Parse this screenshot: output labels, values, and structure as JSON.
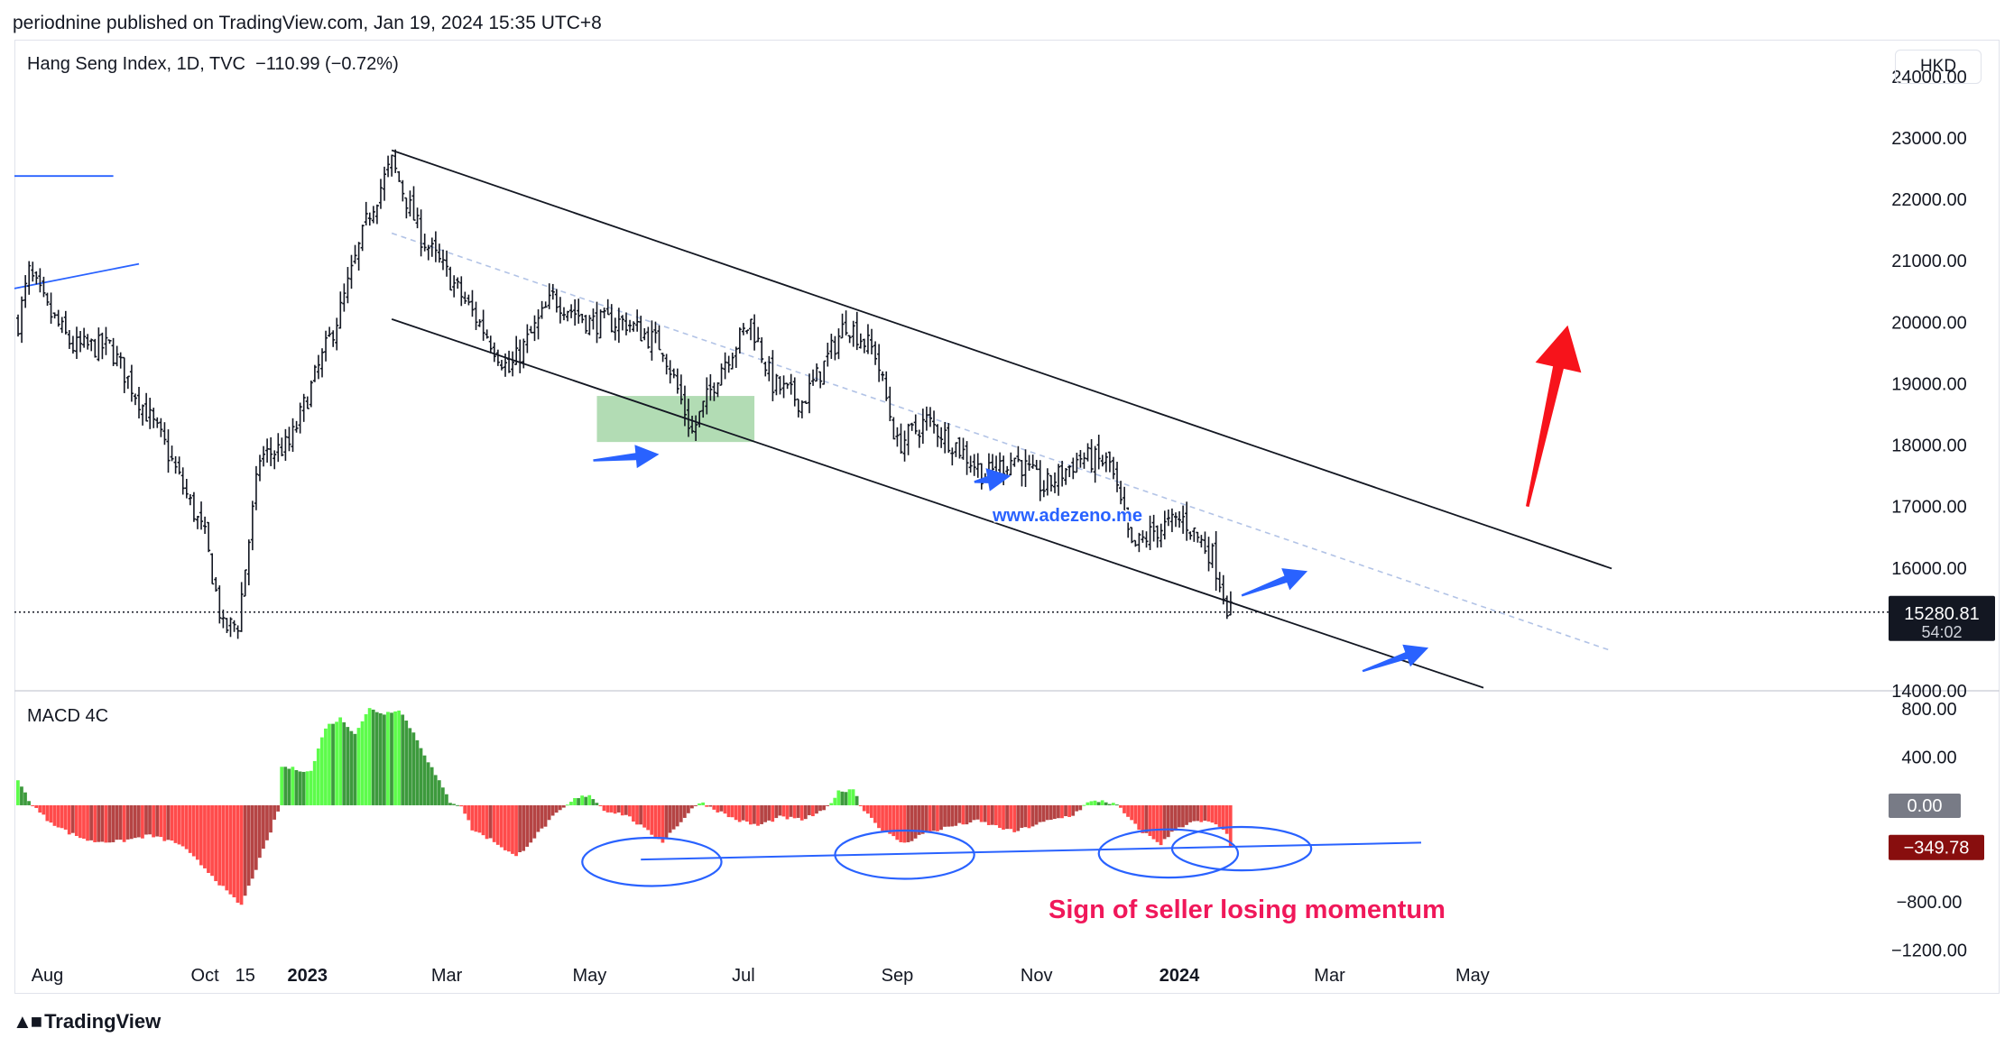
{
  "header": {
    "publisher": "periodnine published on TradingView.com, Jan 19, 2024 15:35 UTC+8",
    "legend": "Hang Seng Index, 1D, TVC  −110.99 (−0.72%)",
    "currency": "HKD",
    "macd_label": "MACD 4C"
  },
  "footer": {
    "brand": "TradingView"
  },
  "annotations": {
    "watermark": "www.adezeno.me",
    "caption": "Sign of seller losing momentum"
  },
  "colors": {
    "candle": "#131722",
    "channel": "#131722",
    "midline": "#b2c3e6",
    "arrow_blue": "#2962ff",
    "arrow_red": "#f7131b",
    "zone": "#a5d6a7",
    "macd_bright_green": "#5dfc4b",
    "macd_dark_green": "#3d9a3d",
    "macd_bright_red": "#ff4b4b",
    "macd_dark_red": "#b54444",
    "caption": "#f0185a"
  },
  "chart_data": [
    {
      "type": "candlestick",
      "title": "Hang Seng Index, 1D, TVC",
      "ylim": [
        14000,
        24600
      ],
      "y_ticks": [
        "24000.00",
        "23000.00",
        "22000.00",
        "21000.00",
        "20000.00",
        "19000.00",
        "18000.00",
        "17000.00",
        "16000.00",
        "14000.00"
      ],
      "y_tick_values": [
        24000,
        23000,
        22000,
        21000,
        20000,
        19000,
        18000,
        17000,
        16000,
        14000
      ],
      "last_price": "15280.81",
      "countdown": "54:02",
      "last_value": 15280.81,
      "x_ticks": [
        {
          "label": "Aug",
          "bold": false,
          "index": 8
        },
        {
          "label": "Oct",
          "bold": false,
          "index": 51
        },
        {
          "label": "15",
          "bold": false,
          "index": 62
        },
        {
          "label": "2023",
          "bold": true,
          "index": 79
        },
        {
          "label": "Mar",
          "bold": false,
          "index": 117
        },
        {
          "label": "May",
          "bold": false,
          "index": 156
        },
        {
          "label": "Jul",
          "bold": false,
          "index": 198
        },
        {
          "label": "Sep",
          "bold": false,
          "index": 240
        },
        {
          "label": "Nov",
          "bold": false,
          "index": 278
        },
        {
          "label": "2024",
          "bold": true,
          "index": 317
        },
        {
          "label": "Mar",
          "bold": false,
          "index": 358
        },
        {
          "label": "May",
          "bold": false,
          "index": 397
        }
      ],
      "keypoints": [
        [
          0,
          20000
        ],
        [
          3,
          20800
        ],
        [
          8,
          20200
        ],
        [
          15,
          19600
        ],
        [
          25,
          19600
        ],
        [
          40,
          18000
        ],
        [
          51,
          16500
        ],
        [
          56,
          15000
        ],
        [
          60,
          15100
        ],
        [
          66,
          17800
        ],
        [
          74,
          18000
        ],
        [
          81,
          19100
        ],
        [
          88,
          20200
        ],
        [
          96,
          21800
        ],
        [
          102,
          22600
        ],
        [
          110,
          21400
        ],
        [
          118,
          20700
        ],
        [
          128,
          19800
        ],
        [
          134,
          19200
        ],
        [
          146,
          20400
        ],
        [
          156,
          20000
        ],
        [
          166,
          20000
        ],
        [
          176,
          19600
        ],
        [
          184,
          18200
        ],
        [
          192,
          19300
        ],
        [
          200,
          20000
        ],
        [
          206,
          19000
        ],
        [
          214,
          18700
        ],
        [
          220,
          19300
        ],
        [
          226,
          20000
        ],
        [
          234,
          19500
        ],
        [
          240,
          18000
        ],
        [
          248,
          18400
        ],
        [
          256,
          18000
        ],
        [
          264,
          17500
        ],
        [
          272,
          17800
        ],
        [
          280,
          17300
        ],
        [
          290,
          17800
        ],
        [
          298,
          17700
        ],
        [
          304,
          16300
        ],
        [
          310,
          16600
        ],
        [
          318,
          16800
        ],
        [
          326,
          16200
        ],
        [
          330,
          15400
        ],
        [
          331,
          15280
        ]
      ],
      "channel_upper": [
        [
          102,
          22800
        ],
        [
          435,
          15990
        ]
      ],
      "channel_lower": [
        [
          102,
          20050
        ],
        [
          400,
          14050
        ]
      ],
      "midline": [
        [
          102,
          21450
        ],
        [
          435,
          14650
        ]
      ],
      "range_zone": {
        "x": [
          158,
          201
        ],
        "y": [
          18050,
          18800
        ]
      },
      "early_lines": [
        {
          "points": [
            [
              -1,
              20550
            ],
            [
              33,
              20950
            ]
          ]
        },
        {
          "points": [
            [
              -1,
              22380
            ],
            [
              26,
              22380
            ]
          ]
        }
      ],
      "arrows": [
        {
          "color": "blue",
          "from": [
            157,
            17750
          ],
          "to": [
            175,
            17850
          ]
        },
        {
          "color": "blue",
          "from": [
            261,
            17400
          ],
          "to": [
            271,
            17500
          ]
        },
        {
          "color": "blue",
          "from": [
            334,
            15550
          ],
          "to": [
            352,
            15950
          ]
        },
        {
          "color": "blue",
          "from": [
            367,
            14320
          ],
          "to": [
            385,
            14700
          ]
        },
        {
          "color": "red",
          "from": [
            412,
            17000
          ],
          "to": [
            423,
            19950
          ]
        }
      ]
    },
    {
      "type": "bar",
      "title": "MACD 4C",
      "ylim": [
        -1250,
        950
      ],
      "y_ticks": [
        "800.00",
        "400.00",
        "−800.00",
        "−1200.00"
      ],
      "y_tick_values": [
        800,
        400,
        -800,
        -1200
      ],
      "zero_label": "0.00",
      "last_label": "−349.78",
      "last_value": -349.78,
      "keypoints": [
        [
          0,
          200
        ],
        [
          4,
          0
        ],
        [
          8,
          -120
        ],
        [
          14,
          -230
        ],
        [
          20,
          -300
        ],
        [
          28,
          -300
        ],
        [
          36,
          -250
        ],
        [
          44,
          -320
        ],
        [
          52,
          -550
        ],
        [
          58,
          -750
        ],
        [
          61,
          -830
        ],
        [
          64,
          -600
        ],
        [
          68,
          -300
        ],
        [
          71,
          -50
        ],
        [
          72,
          320
        ],
        [
          76,
          300
        ],
        [
          80,
          280
        ],
        [
          84,
          650
        ],
        [
          88,
          720
        ],
        [
          92,
          600
        ],
        [
          96,
          800
        ],
        [
          100,
          760
        ],
        [
          104,
          800
        ],
        [
          108,
          600
        ],
        [
          114,
          250
        ],
        [
          118,
          30
        ],
        [
          121,
          0
        ],
        [
          124,
          -200
        ],
        [
          130,
          -300
        ],
        [
          136,
          -430
        ],
        [
          140,
          -300
        ],
        [
          146,
          -100
        ],
        [
          152,
          50
        ],
        [
          156,
          90
        ],
        [
          160,
          -40
        ],
        [
          166,
          -80
        ],
        [
          172,
          -220
        ],
        [
          176,
          -300
        ],
        [
          182,
          -100
        ],
        [
          186,
          30
        ],
        [
          190,
          -30
        ],
        [
          196,
          -120
        ],
        [
          202,
          -170
        ],
        [
          208,
          -100
        ],
        [
          214,
          -120
        ],
        [
          220,
          -50
        ],
        [
          224,
          110
        ],
        [
          228,
          140
        ],
        [
          230,
          0
        ],
        [
          236,
          -210
        ],
        [
          242,
          -320
        ],
        [
          246,
          -250
        ],
        [
          254,
          -180
        ],
        [
          262,
          -130
        ],
        [
          272,
          -220
        ],
        [
          280,
          -140
        ],
        [
          288,
          -80
        ],
        [
          292,
          20
        ],
        [
          296,
          40
        ],
        [
          300,
          0
        ],
        [
          306,
          -200
        ],
        [
          312,
          -320
        ],
        [
          316,
          -200
        ],
        [
          320,
          -140
        ],
        [
          326,
          -140
        ],
        [
          330,
          -240
        ],
        [
          331,
          -350
        ]
      ],
      "trendline": [
        [
          170,
          -450
        ],
        [
          383,
          -310
        ]
      ],
      "circles": [
        {
          "center": [
            173,
            -470
          ],
          "rx": 20,
          "ry": 200
        },
        {
          "center": [
            242,
            -410
          ],
          "rx": 20,
          "ry": 200
        },
        {
          "center": [
            314,
            -400
          ],
          "rx": 20,
          "ry": 200
        },
        {
          "center": [
            334,
            -360
          ],
          "rx": 20,
          "ry": 180
        }
      ]
    }
  ]
}
